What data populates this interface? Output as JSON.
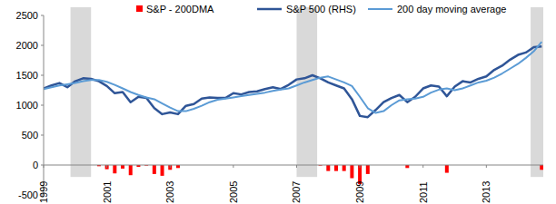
{
  "chart_data": {
    "type": "line",
    "x": [
      1999,
      1999.25,
      1999.5,
      1999.75,
      2000,
      2000.25,
      2000.5,
      2000.75,
      2001,
      2001.25,
      2001.5,
      2001.75,
      2002,
      2002.25,
      2002.5,
      2002.75,
      2003,
      2003.25,
      2003.5,
      2003.75,
      2004,
      2004.25,
      2004.5,
      2004.75,
      2005,
      2005.25,
      2005.5,
      2005.75,
      2006,
      2006.25,
      2006.5,
      2006.75,
      2007,
      2007.25,
      2007.5,
      2007.75,
      2008,
      2008.25,
      2008.5,
      2008.75,
      2009,
      2009.25,
      2009.5,
      2009.75,
      2010,
      2010.25,
      2010.5,
      2010.75,
      2011,
      2011.25,
      2011.5,
      2011.75,
      2012,
      2012.25,
      2012.5,
      2012.75,
      2013,
      2013.25,
      2013.5,
      2013.75,
      2014,
      2014.25,
      2014.5,
      2014.75
    ],
    "series": [
      {
        "name": "S&P - 200DMA",
        "type": "bar",
        "color": "#ff0000",
        "values": [
          null,
          null,
          null,
          null,
          null,
          null,
          null,
          -20,
          -70,
          -140,
          -60,
          -170,
          -30,
          -10,
          -150,
          -180,
          -80,
          -50,
          null,
          null,
          null,
          null,
          null,
          null,
          null,
          null,
          null,
          null,
          null,
          null,
          null,
          null,
          null,
          null,
          null,
          -10,
          -100,
          -100,
          -100,
          -220,
          -320,
          -150,
          null,
          null,
          null,
          null,
          -50,
          null,
          null,
          null,
          null,
          -130,
          null,
          null,
          null,
          null,
          null,
          null,
          null,
          null,
          null,
          null,
          null,
          -80
        ]
      },
      {
        "name": "S&P 500 (RHS)",
        "type": "line",
        "color": "#2f5597",
        "values": [
          1280,
          1330,
          1370,
          1300,
          1400,
          1450,
          1440,
          1400,
          1320,
          1200,
          1220,
          1050,
          1140,
          1120,
          950,
          850,
          880,
          850,
          990,
          1020,
          1110,
          1130,
          1120,
          1120,
          1200,
          1180,
          1220,
          1230,
          1270,
          1300,
          1270,
          1340,
          1430,
          1450,
          1500,
          1450,
          1380,
          1330,
          1280,
          1100,
          820,
          800,
          920,
          1050,
          1120,
          1170,
          1050,
          1140,
          1280,
          1330,
          1310,
          1150,
          1310,
          1400,
          1380,
          1440,
          1480,
          1590,
          1660,
          1760,
          1840,
          1880,
          1970,
          1980
        ]
      },
      {
        "name": "200 day moving average",
        "type": "line",
        "color": "#5b9bd5",
        "values": [
          1270,
          1300,
          1330,
          1350,
          1370,
          1400,
          1420,
          1420,
          1390,
          1340,
          1280,
          1220,
          1170,
          1130,
          1100,
          1030,
          960,
          900,
          900,
          940,
          990,
          1050,
          1090,
          1110,
          1130,
          1150,
          1170,
          1190,
          1210,
          1240,
          1260,
          1280,
          1330,
          1380,
          1420,
          1460,
          1480,
          1430,
          1380,
          1320,
          1140,
          950,
          870,
          900,
          1000,
          1080,
          1100,
          1110,
          1140,
          1210,
          1260,
          1280,
          1250,
          1280,
          1330,
          1380,
          1410,
          1460,
          1530,
          1610,
          1690,
          1790,
          1900,
          2060
        ]
      }
    ],
    "shaded_periods": [
      [
        1999.85,
        2000.5
      ],
      [
        2007.0,
        2007.65
      ],
      [
        2014.4,
        2014.8
      ]
    ],
    "xlim": [
      1999,
      2014.8
    ],
    "xticks": [
      1999,
      2001,
      2003,
      2005,
      2007,
      2009,
      2011,
      2013
    ],
    "ylim": [
      -500,
      2500
    ],
    "yticks": [
      -500,
      0,
      500,
      1000,
      1500,
      2000,
      2500
    ],
    "grid": false,
    "legend": "top"
  }
}
